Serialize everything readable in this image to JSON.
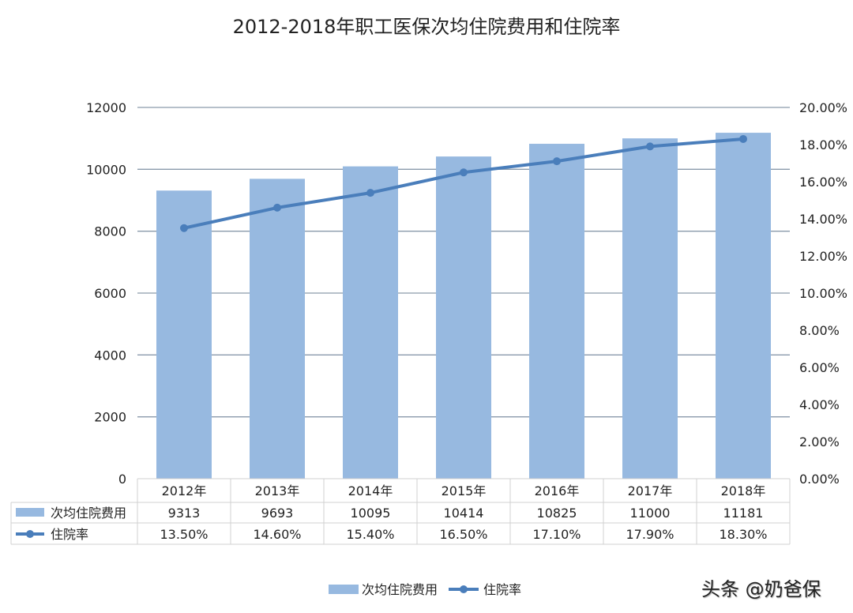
{
  "chart_data": {
    "type": "bar+line",
    "title": "2012-2018年职工医保次均住院费用和住院率",
    "categories": [
      "2012年",
      "2013年",
      "2014年",
      "2015年",
      "2016年",
      "2017年",
      "2018年"
    ],
    "series": [
      {
        "name": "次均住院费用",
        "type": "bar",
        "axis": "left",
        "values": [
          9313,
          9693,
          10095,
          10414,
          10825,
          11000,
          11181
        ],
        "labels": [
          "9313",
          "9693",
          "10095",
          "10414",
          "10825",
          "11000",
          "11181"
        ],
        "color": "#97b9e0"
      },
      {
        "name": "住院率",
        "type": "line",
        "axis": "right",
        "values": [
          13.5,
          14.6,
          15.4,
          16.5,
          17.1,
          17.9,
          18.3
        ],
        "labels": [
          "13.50%",
          "14.60%",
          "15.40%",
          "16.50%",
          "17.10%",
          "17.90%",
          "18.30%"
        ],
        "color": "#4a7ebb"
      }
    ],
    "yleft": {
      "lim": [
        0,
        12000
      ],
      "ticks": [
        "0",
        "2000",
        "4000",
        "6000",
        "8000",
        "10000",
        "12000"
      ]
    },
    "yright": {
      "lim": [
        0,
        20
      ],
      "ticks": [
        "0.00%",
        "2.00%",
        "4.00%",
        "6.00%",
        "8.00%",
        "10.00%",
        "12.00%",
        "14.00%",
        "16.00%",
        "18.00%",
        "20.00%"
      ]
    },
    "grid": true,
    "legend": "bottom",
    "data_table": true
  },
  "watermark": "头条 @奶爸保"
}
